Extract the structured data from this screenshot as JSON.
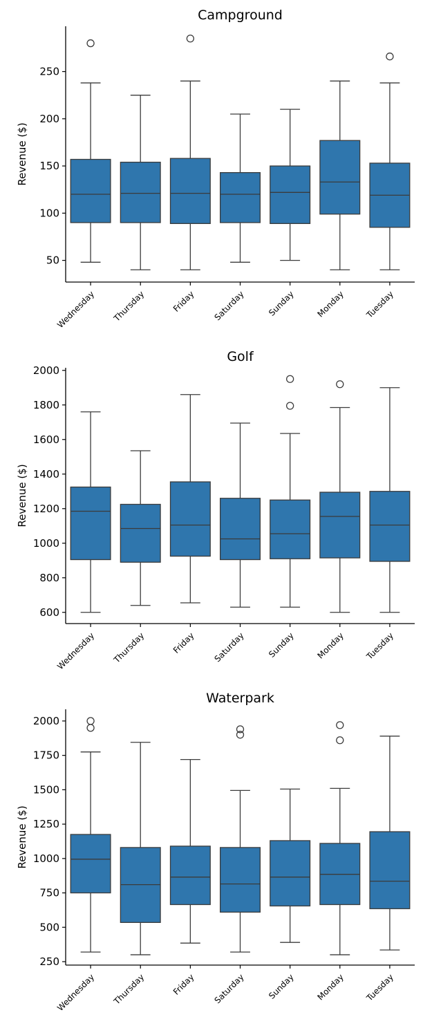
{
  "theme": {
    "box_fill": "#2f76ad",
    "line_color": "#3b3b3b",
    "axis_color": "#000000"
  },
  "chart_data": [
    {
      "type": "boxplot",
      "title": "Campground",
      "ylabel": "Revenue ($)",
      "categories": [
        "Wednesday",
        "Thursday",
        "Friday",
        "Saturday",
        "Sunday",
        "Monday",
        "Tuesday"
      ],
      "yticks": [
        50,
        100,
        150,
        200,
        250
      ],
      "ylim": [
        27,
        298
      ],
      "stats": [
        {
          "whisker_low": 48,
          "q1": 90,
          "median": 120,
          "q3": 157,
          "whisker_high": 238,
          "outliers": [
            280
          ]
        },
        {
          "whisker_low": 40,
          "q1": 90,
          "median": 121,
          "q3": 154,
          "whisker_high": 225,
          "outliers": []
        },
        {
          "whisker_low": 40,
          "q1": 89,
          "median": 121,
          "q3": 158,
          "whisker_high": 240,
          "outliers": [
            285
          ]
        },
        {
          "whisker_low": 48,
          "q1": 90,
          "median": 120,
          "q3": 143,
          "whisker_high": 205,
          "outliers": []
        },
        {
          "whisker_low": 50,
          "q1": 89,
          "median": 122,
          "q3": 150,
          "whisker_high": 210,
          "outliers": []
        },
        {
          "whisker_low": 40,
          "q1": 99,
          "median": 133,
          "q3": 177,
          "whisker_high": 240,
          "outliers": []
        },
        {
          "whisker_low": 40,
          "q1": 85,
          "median": 119,
          "q3": 153,
          "whisker_high": 238,
          "outliers": [
            266
          ]
        }
      ]
    },
    {
      "type": "boxplot",
      "title": "Golf",
      "ylabel": "Revenue ($)",
      "categories": [
        "Wednesday",
        "Thursday",
        "Friday",
        "Saturday",
        "Sunday",
        "Monday",
        "Tuesday"
      ],
      "yticks": [
        600,
        800,
        1000,
        1200,
        1400,
        1600,
        1800,
        2000
      ],
      "ylim": [
        535,
        2015
      ],
      "stats": [
        {
          "whisker_low": 600,
          "q1": 905,
          "median": 1185,
          "q3": 1325,
          "whisker_high": 1760,
          "outliers": []
        },
        {
          "whisker_low": 640,
          "q1": 890,
          "median": 1085,
          "q3": 1225,
          "whisker_high": 1535,
          "outliers": []
        },
        {
          "whisker_low": 655,
          "q1": 925,
          "median": 1105,
          "q3": 1355,
          "whisker_high": 1860,
          "outliers": []
        },
        {
          "whisker_low": 630,
          "q1": 905,
          "median": 1025,
          "q3": 1260,
          "whisker_high": 1695,
          "outliers": []
        },
        {
          "whisker_low": 630,
          "q1": 910,
          "median": 1055,
          "q3": 1250,
          "whisker_high": 1635,
          "outliers": [
            1795,
            1950
          ]
        },
        {
          "whisker_low": 600,
          "q1": 915,
          "median": 1155,
          "q3": 1295,
          "whisker_high": 1785,
          "outliers": [
            1920
          ]
        },
        {
          "whisker_low": 600,
          "q1": 895,
          "median": 1105,
          "q3": 1300,
          "whisker_high": 1900,
          "outliers": []
        }
      ]
    },
    {
      "type": "boxplot",
      "title": "Waterpark",
      "ylabel": "Revenue ($)",
      "categories": [
        "Wednesday",
        "Thursday",
        "Friday",
        "Saturday",
        "Sunday",
        "Monday",
        "Tuesday"
      ],
      "yticks": [
        250,
        500,
        750,
        1000,
        1250,
        1500,
        1750,
        2000
      ],
      "ylim": [
        225,
        2085
      ],
      "stats": [
        {
          "whisker_low": 320,
          "q1": 750,
          "median": 995,
          "q3": 1175,
          "whisker_high": 1775,
          "outliers": [
            1950,
            2000
          ]
        },
        {
          "whisker_low": 300,
          "q1": 535,
          "median": 810,
          "q3": 1080,
          "whisker_high": 1845,
          "outliers": []
        },
        {
          "whisker_low": 385,
          "q1": 665,
          "median": 865,
          "q3": 1090,
          "whisker_high": 1720,
          "outliers": []
        },
        {
          "whisker_low": 320,
          "q1": 610,
          "median": 815,
          "q3": 1080,
          "whisker_high": 1495,
          "outliers": [
            1900,
            1940
          ]
        },
        {
          "whisker_low": 390,
          "q1": 655,
          "median": 865,
          "q3": 1130,
          "whisker_high": 1505,
          "outliers": []
        },
        {
          "whisker_low": 300,
          "q1": 665,
          "median": 885,
          "q3": 1110,
          "whisker_high": 1510,
          "outliers": [
            1860,
            1970
          ]
        },
        {
          "whisker_low": 335,
          "q1": 635,
          "median": 835,
          "q3": 1195,
          "whisker_high": 1890,
          "outliers": []
        }
      ]
    }
  ]
}
